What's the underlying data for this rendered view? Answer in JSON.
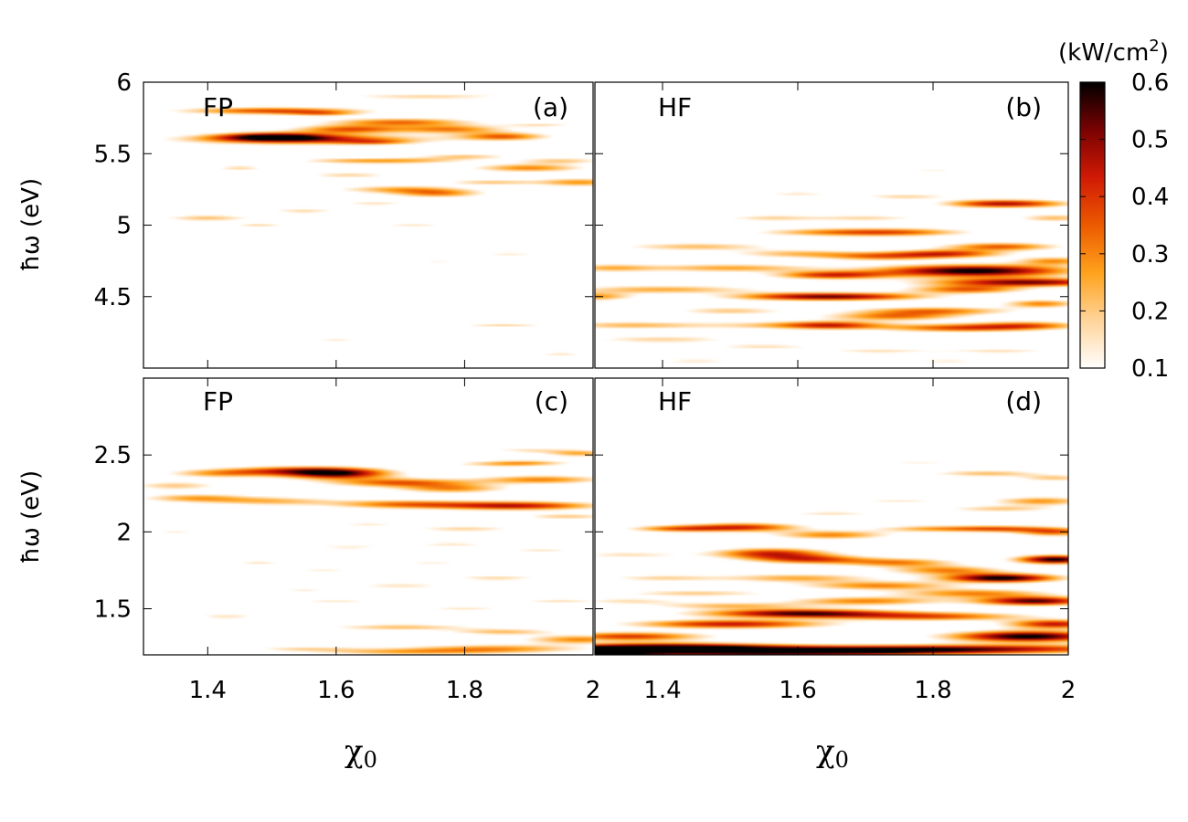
{
  "chart_data": {
    "type": "heatmap",
    "colorbar": {
      "unit": "(kW/cm",
      "unit_sup": "2",
      "unit_close": ")",
      "range": [
        0.1,
        0.6
      ],
      "ticks": [
        "0.1",
        "0.2",
        "0.3",
        "0.4",
        "0.5",
        "0.6"
      ],
      "tick_values": [
        0.1,
        0.2,
        0.3,
        0.4,
        0.5,
        0.6
      ],
      "colormap": [
        "#ffffff",
        "#ffd49a",
        "#ffa21d",
        "#ec5a00",
        "#d01a05",
        "#7a0202",
        "#000000"
      ]
    },
    "x_axis": {
      "title": "χ",
      "title_sub": "0",
      "range": [
        1.3,
        2.0
      ],
      "ticks": [
        1.4,
        1.6,
        1.8,
        2.0
      ],
      "tick_labels": [
        "1.4",
        "1.6",
        "1.8",
        "2"
      ]
    },
    "y_axis_title": "ħω (eV)",
    "panels": [
      {
        "id": "a",
        "method": "FP",
        "tag": "(a)",
        "ylim": [
          4.0,
          6.0
        ],
        "yticks": [
          4.5,
          5.0,
          5.5,
          6.0
        ],
        "ytick_labels": [
          "4.5",
          "5",
          "5.5",
          "6"
        ],
        "features": [
          [
            1.5,
            5.8,
            0.1,
            0.018,
            0.38
          ],
          [
            1.55,
            5.6,
            0.13,
            0.025,
            0.42
          ],
          [
            1.5,
            5.62,
            0.06,
            0.02,
            0.45
          ],
          [
            1.62,
            5.67,
            0.06,
            0.02,
            0.35
          ],
          [
            1.7,
            5.72,
            0.08,
            0.02,
            0.33
          ],
          [
            1.78,
            5.67,
            0.06,
            0.02,
            0.3
          ],
          [
            1.86,
            5.62,
            0.05,
            0.02,
            0.34
          ],
          [
            1.74,
            5.9,
            0.1,
            0.015,
            0.18
          ],
          [
            1.62,
            5.45,
            0.06,
            0.015,
            0.2
          ],
          [
            1.72,
            5.45,
            0.06,
            0.015,
            0.2
          ],
          [
            1.8,
            5.48,
            0.05,
            0.015,
            0.2
          ],
          [
            1.9,
            5.4,
            0.06,
            0.02,
            0.3
          ],
          [
            1.98,
            5.3,
            0.05,
            0.02,
            0.28
          ],
          [
            1.7,
            5.25,
            0.07,
            0.02,
            0.25
          ],
          [
            1.76,
            5.22,
            0.05,
            0.02,
            0.27
          ],
          [
            1.84,
            5.3,
            0.05,
            0.015,
            0.2
          ],
          [
            1.55,
            5.1,
            0.04,
            0.015,
            0.17
          ],
          [
            1.62,
            5.35,
            0.05,
            0.015,
            0.18
          ],
          [
            1.95,
            5.45,
            0.05,
            0.015,
            0.2
          ],
          [
            1.4,
            5.05,
            0.05,
            0.015,
            0.22
          ],
          [
            1.45,
            5.4,
            0.03,
            0.012,
            0.18
          ],
          [
            1.48,
            5.0,
            0.03,
            0.012,
            0.18
          ],
          [
            1.72,
            5.0,
            0.04,
            0.012,
            0.15
          ],
          [
            1.87,
            4.8,
            0.04,
            0.012,
            0.14
          ],
          [
            1.86,
            4.3,
            0.05,
            0.012,
            0.18
          ],
          [
            1.95,
            4.1,
            0.03,
            0.01,
            0.16
          ],
          [
            1.6,
            4.2,
            0.03,
            0.01,
            0.14
          ],
          [
            1.76,
            4.75,
            0.03,
            0.01,
            0.13
          ],
          [
            1.66,
            5.15,
            0.04,
            0.012,
            0.16
          ],
          [
            1.92,
            5.7,
            0.04,
            0.012,
            0.16
          ],
          [
            1.58,
            5.78,
            0.04,
            0.012,
            0.2
          ],
          [
            1.66,
            5.58,
            0.04,
            0.012,
            0.18
          ]
        ]
      },
      {
        "id": "b",
        "method": "HF",
        "tag": "(b)",
        "ylim": [
          4.0,
          6.0
        ],
        "yticks": [
          4.5,
          5.0,
          5.5,
          6.0
        ],
        "ytick_labels": [
          "4.5",
          "5",
          "5.5",
          "6"
        ],
        "features": [
          [
            1.86,
            4.68,
            0.1,
            0.03,
            0.62
          ],
          [
            1.94,
            4.6,
            0.1,
            0.02,
            0.52
          ],
          [
            1.65,
            4.65,
            0.06,
            0.02,
            0.4
          ],
          [
            1.82,
            4.8,
            0.06,
            0.02,
            0.4
          ],
          [
            1.9,
            4.85,
            0.06,
            0.02,
            0.35
          ],
          [
            1.6,
            4.5,
            0.08,
            0.02,
            0.35
          ],
          [
            1.7,
            4.5,
            0.08,
            0.02,
            0.3
          ],
          [
            1.8,
            4.4,
            0.08,
            0.02,
            0.32
          ],
          [
            1.84,
            4.28,
            0.08,
            0.02,
            0.35
          ],
          [
            1.94,
            4.3,
            0.06,
            0.02,
            0.3
          ],
          [
            1.74,
            4.36,
            0.07,
            0.02,
            0.3
          ],
          [
            1.6,
            4.3,
            0.1,
            0.02,
            0.22
          ],
          [
            1.88,
            5.15,
            0.05,
            0.02,
            0.35
          ],
          [
            1.95,
            5.15,
            0.05,
            0.02,
            0.25
          ],
          [
            1.5,
            4.7,
            0.09,
            0.02,
            0.26
          ],
          [
            1.4,
            4.55,
            0.1,
            0.02,
            0.25
          ],
          [
            1.35,
            4.3,
            0.08,
            0.02,
            0.22
          ],
          [
            1.45,
            4.85,
            0.08,
            0.02,
            0.22
          ],
          [
            1.65,
            4.95,
            0.08,
            0.02,
            0.26
          ],
          [
            1.76,
            4.95,
            0.07,
            0.02,
            0.26
          ],
          [
            1.7,
            5.05,
            0.06,
            0.015,
            0.18
          ],
          [
            1.56,
            5.05,
            0.05,
            0.015,
            0.18
          ],
          [
            1.6,
            4.8,
            0.07,
            0.02,
            0.22
          ],
          [
            1.72,
            4.78,
            0.06,
            0.02,
            0.28
          ],
          [
            1.5,
            4.4,
            0.06,
            0.02,
            0.2
          ],
          [
            1.4,
            4.2,
            0.08,
            0.02,
            0.18
          ],
          [
            1.55,
            4.15,
            0.06,
            0.015,
            0.16
          ],
          [
            1.72,
            4.12,
            0.06,
            0.015,
            0.16
          ],
          [
            1.9,
            4.12,
            0.06,
            0.015,
            0.16
          ],
          [
            1.96,
            4.45,
            0.04,
            0.02,
            0.3
          ],
          [
            1.98,
            4.75,
            0.04,
            0.02,
            0.28
          ],
          [
            1.98,
            5.05,
            0.04,
            0.02,
            0.22
          ],
          [
            1.76,
            5.2,
            0.05,
            0.015,
            0.18
          ],
          [
            1.6,
            5.22,
            0.04,
            0.012,
            0.15
          ],
          [
            1.3,
            4.5,
            0.04,
            0.02,
            0.28
          ],
          [
            1.32,
            4.7,
            0.05,
            0.02,
            0.22
          ],
          [
            1.8,
            5.38,
            0.04,
            0.012,
            0.12
          ],
          [
            1.65,
            4.3,
            0.05,
            0.02,
            0.25
          ],
          [
            1.85,
            4.55,
            0.06,
            0.02,
            0.35
          ],
          [
            1.45,
            4.05,
            0.05,
            0.012,
            0.15
          ],
          [
            1.82,
            4.05,
            0.05,
            0.012,
            0.14
          ]
        ]
      },
      {
        "id": "c",
        "method": "FP",
        "tag": "(c)",
        "ylim": [
          1.2,
          3.0
        ],
        "yticks": [
          1.5,
          2.0,
          2.5
        ],
        "ytick_labels": [
          "1.5",
          "2",
          "2.5"
        ],
        "features": [
          [
            1.6,
            2.38,
            0.06,
            0.025,
            0.55
          ],
          [
            1.7,
            2.32,
            0.08,
            0.02,
            0.35
          ],
          [
            1.78,
            2.28,
            0.06,
            0.02,
            0.28
          ],
          [
            1.52,
            2.4,
            0.07,
            0.02,
            0.28
          ],
          [
            1.42,
            2.38,
            0.06,
            0.02,
            0.25
          ],
          [
            1.35,
            2.3,
            0.05,
            0.02,
            0.2
          ],
          [
            1.38,
            2.22,
            0.06,
            0.02,
            0.25
          ],
          [
            1.5,
            2.2,
            0.07,
            0.02,
            0.22
          ],
          [
            1.7,
            2.18,
            0.08,
            0.02,
            0.3
          ],
          [
            1.88,
            2.17,
            0.09,
            0.02,
            0.45
          ],
          [
            1.92,
            2.34,
            0.07,
            0.02,
            0.3
          ],
          [
            1.86,
            2.44,
            0.06,
            0.015,
            0.18
          ],
          [
            1.98,
            2.51,
            0.04,
            0.015,
            0.25
          ],
          [
            1.9,
            2.53,
            0.05,
            0.012,
            0.15
          ],
          [
            1.96,
            2.1,
            0.05,
            0.015,
            0.2
          ],
          [
            1.8,
            2.02,
            0.06,
            0.015,
            0.18
          ],
          [
            1.62,
            1.9,
            0.05,
            0.012,
            0.14
          ],
          [
            1.78,
            1.92,
            0.05,
            0.012,
            0.15
          ],
          [
            1.92,
            1.88,
            0.04,
            0.012,
            0.15
          ],
          [
            1.85,
            1.7,
            0.05,
            0.012,
            0.18
          ],
          [
            1.7,
            1.65,
            0.06,
            0.012,
            0.16
          ],
          [
            1.6,
            1.55,
            0.05,
            0.012,
            0.14
          ],
          [
            1.8,
            1.5,
            0.05,
            0.012,
            0.15
          ],
          [
            1.95,
            1.55,
            0.05,
            0.012,
            0.16
          ],
          [
            1.7,
            1.38,
            0.08,
            0.015,
            0.22
          ],
          [
            1.86,
            1.35,
            0.06,
            0.015,
            0.22
          ],
          [
            1.98,
            1.3,
            0.06,
            0.02,
            0.3
          ],
          [
            1.85,
            1.24,
            0.1,
            0.02,
            0.28
          ],
          [
            1.7,
            1.22,
            0.1,
            0.015,
            0.22
          ],
          [
            1.55,
            1.24,
            0.06,
            0.012,
            0.16
          ],
          [
            1.43,
            1.45,
            0.04,
            0.012,
            0.16
          ],
          [
            1.48,
            1.8,
            0.03,
            0.012,
            0.15
          ],
          [
            1.55,
            1.62,
            0.03,
            0.01,
            0.13
          ],
          [
            1.35,
            2.0,
            0.03,
            0.01,
            0.13
          ],
          [
            1.65,
            2.05,
            0.04,
            0.012,
            0.14
          ],
          [
            1.58,
            1.75,
            0.04,
            0.01,
            0.13
          ],
          [
            1.75,
            1.8,
            0.04,
            0.01,
            0.13
          ],
          [
            1.9,
            2.45,
            0.05,
            0.012,
            0.16
          ]
        ]
      },
      {
        "id": "d",
        "method": "HF",
        "tag": "(d)",
        "ylim": [
          1.2,
          3.0
        ],
        "yticks": [
          1.5,
          2.0,
          2.5
        ],
        "ytick_labels": [
          "1.5",
          "2",
          "2.5"
        ],
        "features": [
          [
            1.55,
            1.22,
            0.2,
            0.02,
            0.62
          ],
          [
            1.85,
            1.24,
            0.2,
            0.02,
            0.45
          ],
          [
            1.4,
            1.25,
            0.12,
            0.02,
            0.55
          ],
          [
            1.35,
            1.32,
            0.08,
            0.02,
            0.4
          ],
          [
            1.6,
            1.47,
            0.1,
            0.02,
            0.55
          ],
          [
            1.8,
            1.45,
            0.1,
            0.02,
            0.35
          ],
          [
            1.5,
            1.4,
            0.1,
            0.02,
            0.45
          ],
          [
            1.94,
            1.32,
            0.08,
            0.025,
            0.62
          ],
          [
            1.98,
            1.4,
            0.05,
            0.02,
            0.45
          ],
          [
            1.95,
            1.55,
            0.06,
            0.02,
            0.55
          ],
          [
            1.9,
            1.7,
            0.06,
            0.02,
            0.62
          ],
          [
            1.98,
            1.82,
            0.04,
            0.02,
            0.6
          ],
          [
            1.56,
            1.86,
            0.06,
            0.025,
            0.42
          ],
          [
            1.62,
            1.82,
            0.06,
            0.02,
            0.35
          ],
          [
            1.75,
            1.8,
            0.06,
            0.02,
            0.3
          ],
          [
            1.82,
            1.75,
            0.06,
            0.02,
            0.3
          ],
          [
            1.52,
            2.03,
            0.06,
            0.02,
            0.4
          ],
          [
            1.42,
            2.02,
            0.05,
            0.015,
            0.3
          ],
          [
            1.65,
            1.98,
            0.06,
            0.02,
            0.3
          ],
          [
            1.8,
            2.02,
            0.06,
            0.015,
            0.25
          ],
          [
            1.9,
            2.02,
            0.05,
            0.015,
            0.3
          ],
          [
            1.98,
            2.0,
            0.04,
            0.02,
            0.35
          ],
          [
            1.96,
            2.2,
            0.05,
            0.02,
            0.28
          ],
          [
            1.88,
            2.38,
            0.06,
            0.015,
            0.22
          ],
          [
            1.98,
            2.35,
            0.04,
            0.015,
            0.2
          ],
          [
            1.9,
            2.15,
            0.06,
            0.015,
            0.2
          ],
          [
            1.6,
            1.7,
            0.08,
            0.02,
            0.25
          ],
          [
            1.72,
            1.65,
            0.08,
            0.02,
            0.3
          ],
          [
            1.86,
            1.6,
            0.08,
            0.02,
            0.3
          ],
          [
            1.45,
            1.6,
            0.08,
            0.015,
            0.2
          ],
          [
            1.4,
            1.7,
            0.06,
            0.015,
            0.18
          ],
          [
            1.7,
            1.55,
            0.08,
            0.02,
            0.3
          ],
          [
            1.5,
            1.52,
            0.08,
            0.015,
            0.22
          ],
          [
            1.35,
            1.55,
            0.06,
            0.015,
            0.16
          ],
          [
            1.35,
            1.85,
            0.06,
            0.015,
            0.16
          ],
          [
            1.65,
            2.12,
            0.05,
            0.012,
            0.16
          ],
          [
            1.75,
            2.2,
            0.05,
            0.012,
            0.14
          ],
          [
            1.78,
            2.45,
            0.05,
            0.01,
            0.12
          ],
          [
            1.85,
            2.85,
            0.03,
            0.01,
            0.1
          ],
          [
            1.3,
            1.22,
            0.06,
            0.02,
            0.55
          ]
        ]
      }
    ]
  }
}
